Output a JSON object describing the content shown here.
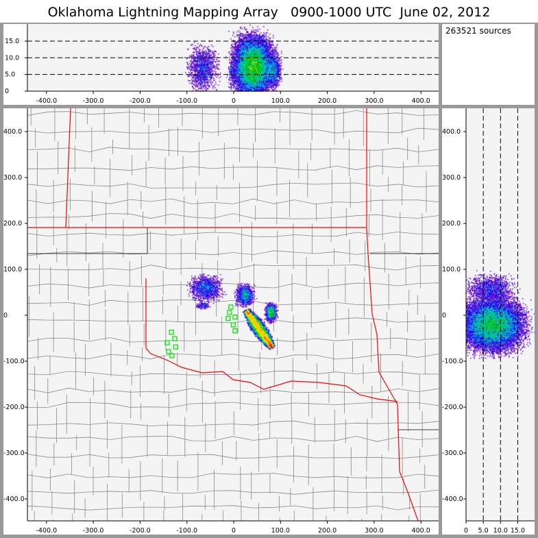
{
  "title": "Oklahoma Lightning Mapping Array   0900-1000 UTC  June 02, 2012",
  "source_count_label": "263521 sources",
  "colors": {
    "state_border": "#ff0000",
    "county_border": "#888888",
    "station": "#00ee00",
    "plot_bg": "#f4f4f4"
  },
  "chart_data": [
    {
      "type": "scatter",
      "name_panel": "altitude-vs-east",
      "xlim": [
        -460,
        440
      ],
      "ylim": [
        0,
        20
      ],
      "x_ticks": [
        "-400.0",
        "-300.0",
        "-200.0",
        "-100.0",
        "0",
        "100.0",
        "200.0",
        "300.0",
        "400.0"
      ],
      "x_tick_values": [
        -400,
        -300,
        -200,
        -100,
        0,
        100,
        200,
        300,
        400
      ],
      "y_ticks": [
        "0",
        "5.0",
        "10.0",
        "15.0"
      ],
      "y_tick_values": [
        0,
        5,
        10,
        15
      ],
      "dashed_gridlines_y": [
        5,
        10,
        15
      ],
      "density_clusters": [
        {
          "x": [
            -90,
            -45
          ],
          "z": [
            2,
            12
          ],
          "density": "low"
        },
        {
          "x": [
            -10,
            0
          ],
          "z": [
            2,
            9
          ],
          "density": "very-low"
        },
        {
          "x": [
            10,
            70
          ],
          "z": [
            1,
            14
          ],
          "density": "high"
        },
        {
          "x": [
            70,
            95
          ],
          "z": [
            3,
            10
          ],
          "density": "low"
        }
      ]
    },
    {
      "type": "scatter",
      "name_panel": "plan-view",
      "xlim": [
        -460,
        440
      ],
      "ylim": [
        -450,
        450
      ],
      "x_ticks": [
        "-400.0",
        "-300.0",
        "-200.0",
        "-100.0",
        "0",
        "100.0",
        "200.0",
        "300.0",
        "400.0"
      ],
      "x_tick_values": [
        -400,
        -300,
        -200,
        -100,
        0,
        100,
        200,
        300,
        400
      ],
      "y_ticks": [
        "400.0",
        "300.0",
        "200.0",
        "100.0",
        "0",
        "-100.0",
        "-200.0",
        "-300.0",
        "-400.0"
      ],
      "y_tick_values": [
        400,
        300,
        200,
        100,
        0,
        -100,
        -200,
        -300,
        -400
      ],
      "density_clusters": [
        {
          "x": -60,
          "y": 60,
          "spread": [
            15,
            12
          ],
          "density": "low"
        },
        {
          "x": -67,
          "y": 22,
          "spread": [
            6,
            3
          ],
          "density": "very-low"
        },
        {
          "x": 23,
          "y": 45,
          "spread": [
            8,
            10
          ],
          "density": "low"
        },
        {
          "x": 79,
          "y": 7,
          "spread": [
            5,
            8
          ],
          "density": "low"
        },
        {
          "line_from": [
            25,
            12
          ],
          "line_to": [
            82,
            -70
          ],
          "width": 8,
          "density": "high"
        }
      ],
      "stations": [
        [
          -6,
          18
        ],
        [
          -9,
          6
        ],
        [
          3,
          -4
        ],
        [
          -12,
          -7
        ],
        [
          -1,
          -21
        ],
        [
          3,
          -34
        ],
        [
          -133,
          -37
        ],
        [
          -126,
          -51
        ],
        [
          -142,
          -60
        ],
        [
          -124,
          -69
        ],
        [
          -139,
          -79
        ],
        [
          -132,
          -88
        ]
      ]
    },
    {
      "type": "scatter",
      "name_panel": "north-vs-altitude",
      "xlim": [
        0,
        20
      ],
      "ylim": [
        -450,
        450
      ],
      "x_ticks": [
        "0",
        "5.0",
        "10.0",
        "15.0"
      ],
      "x_tick_values": [
        0,
        5,
        10,
        15
      ],
      "y_ticks": [
        "400.0",
        "300.0",
        "200.0",
        "100.0",
        "0",
        "-100.0",
        "-200.0",
        "-300.0",
        "-400.0"
      ],
      "y_tick_values": [
        400,
        300,
        200,
        100,
        0,
        -100,
        -200,
        -300,
        -400
      ],
      "dashed_gridlines_x": [
        5,
        10,
        15
      ],
      "density_clusters": [
        {
          "y": [
            35,
            80
          ],
          "z": [
            2,
            12
          ],
          "density": "low"
        },
        {
          "y": [
            -60,
            20
          ],
          "z": [
            1,
            14
          ],
          "density": "high"
        }
      ]
    }
  ]
}
